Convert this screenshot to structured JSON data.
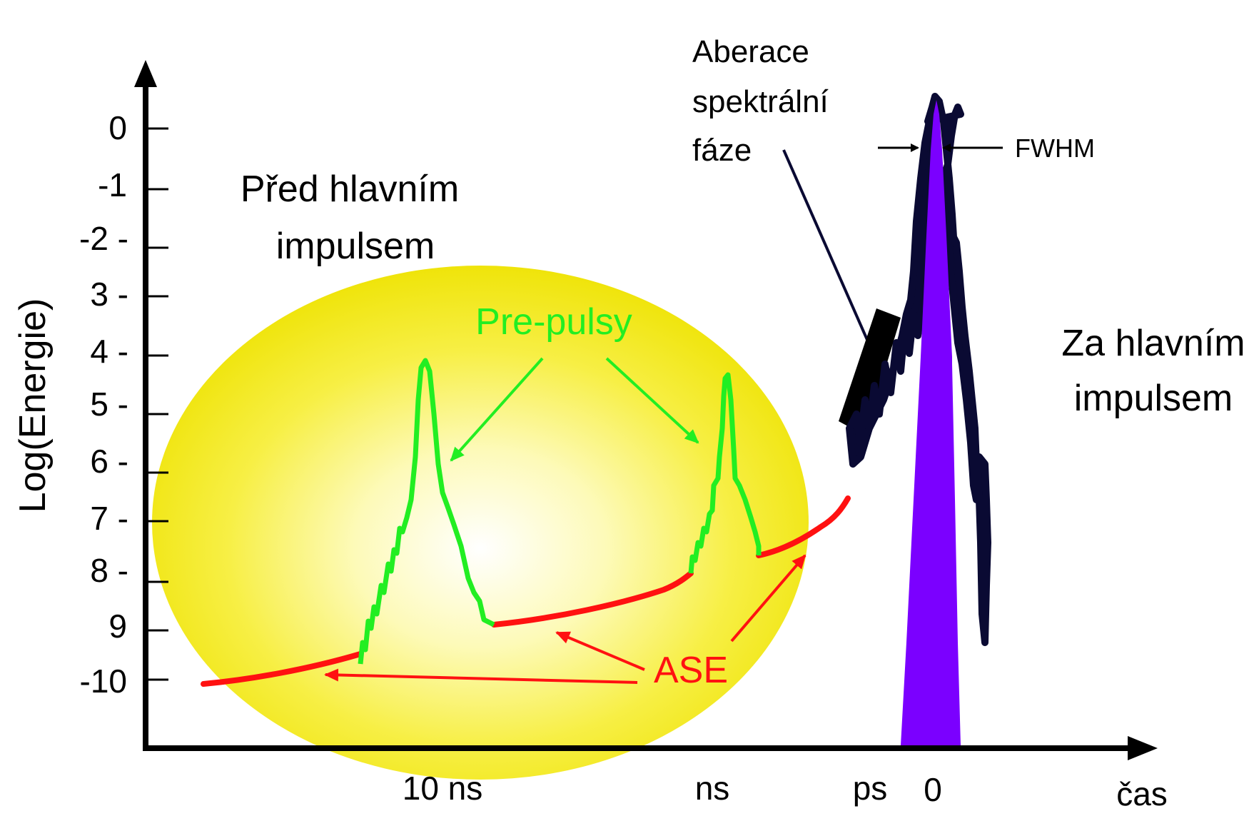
{
  "diagram": {
    "y_axis_label": "Log(Energie)",
    "x_axis_label": "čas",
    "y_ticks": [
      "0",
      "-1",
      "-2 -",
      "3 -",
      "4 -",
      "5 -",
      "6 -",
      "7 -",
      "8 -",
      "9",
      "-10"
    ],
    "x_ticks": [
      "10 ns",
      "ns",
      "ps",
      "0"
    ],
    "region_before": [
      "Před hlavním",
      "impulsem"
    ],
    "region_after": [
      "Za hlavním",
      "impulsem"
    ],
    "prepulse_label": "Pre-pulsy",
    "ase_label": "ASE",
    "aberration_label": [
      "Aberace",
      "spektrální",
      "fáze"
    ],
    "fwhm_label": "FWHM",
    "colors": {
      "ellipse_center": "#ffffff",
      "ellipse_edge": "#f2ea10",
      "prepulse": "#22ee22",
      "ase": "#ff1111",
      "main_pulse": "#7b00ff",
      "pedestal": "#0a0a33",
      "axes": "#000000"
    }
  }
}
